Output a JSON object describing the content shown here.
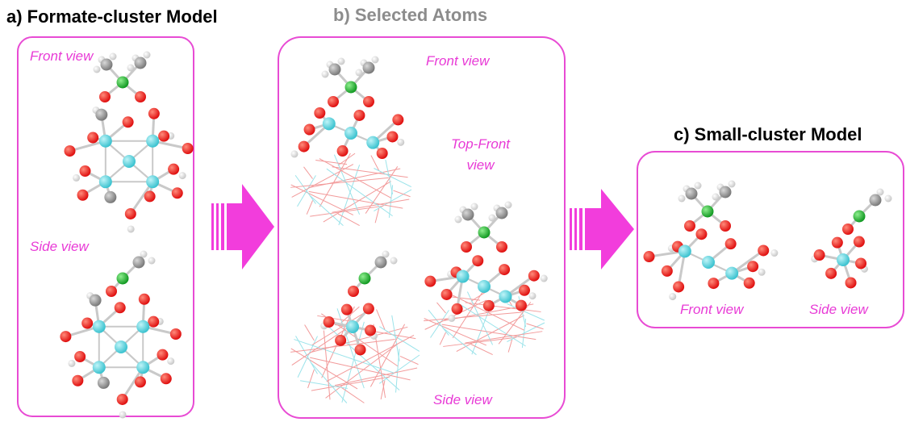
{
  "panels": [
    {
      "title": "a) Formate-cluster Model",
      "labels": [
        "Front view",
        "Side view"
      ]
    },
    {
      "title": "b) Selected Atoms",
      "labels": [
        "Front view",
        "Top-Front view",
        "Side view"
      ]
    },
    {
      "title": "c) Small-cluster Model",
      "labels": [
        "Front view",
        "Side view"
      ]
    }
  ]
}
